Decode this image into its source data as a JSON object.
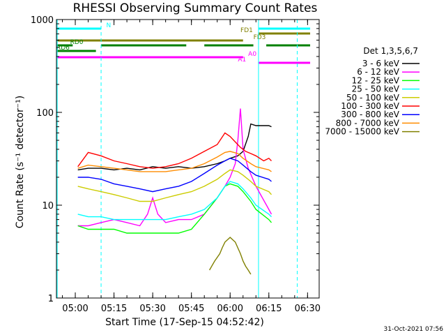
{
  "chart_data": {
    "type": "line",
    "title": "RHESSI Observing Summary Count Rates",
    "xlabel": "Start Time (17-Sep-15 04:52:42)",
    "ylabel": "Count Rate (s⁻¹ detector⁻¹)",
    "yscale": "log",
    "xlim": [
      "04:52:42",
      "06:34:30"
    ],
    "ylim": [
      1,
      1000
    ],
    "x_ticks": [
      "05:00",
      "05:15",
      "05:30",
      "05:45",
      "06:00",
      "06:15",
      "06:30"
    ],
    "y_ticks": [
      "1",
      "10",
      "100",
      "1000"
    ],
    "legend_title": "Det 1,3,5,6,7",
    "legend_position": "right",
    "timestamp": "31-Oct-2021 07:56",
    "x_unit": "HH:MM on 17-Sep-15",
    "series": [
      {
        "name": "3 - 6 keV",
        "color": "#000000",
        "x": [
          "05:01",
          "05:05",
          "05:10",
          "05:15",
          "05:20",
          "05:25",
          "05:30",
          "05:35",
          "05:40",
          "05:45",
          "05:50",
          "05:55",
          "05:58",
          "06:00",
          "06:03",
          "06:05",
          "06:07",
          "06:08",
          "06:10",
          "06:15",
          "06:16"
        ],
        "y": [
          24,
          25,
          25,
          24,
          25,
          24,
          26,
          25,
          26,
          25,
          26,
          28,
          30,
          32,
          34,
          38,
          55,
          75,
          72,
          72,
          70
        ]
      },
      {
        "name": "6 - 12 keV",
        "color": "#ff00ff",
        "x": [
          "05:01",
          "05:05",
          "05:10",
          "05:15",
          "05:20",
          "05:25",
          "05:28",
          "05:30",
          "05:32",
          "05:35",
          "05:40",
          "05:45",
          "05:50",
          "05:55",
          "05:58",
          "06:00",
          "06:02",
          "06:03",
          "06:04",
          "06:05",
          "06:07",
          "06:10",
          "06:15",
          "06:16"
        ],
        "y": [
          6,
          6,
          6.5,
          7,
          6.5,
          6,
          8,
          12,
          8,
          6.5,
          7,
          7,
          8,
          12,
          16,
          20,
          28,
          50,
          110,
          40,
          25,
          16,
          9,
          8
        ]
      },
      {
        "name": "12 - 25 keV",
        "color": "#00ff00",
        "x": [
          "05:01",
          "05:05",
          "05:10",
          "05:15",
          "05:20",
          "05:25",
          "05:30",
          "05:35",
          "05:40",
          "05:45",
          "05:50",
          "05:55",
          "05:58",
          "06:00",
          "06:03",
          "06:05",
          "06:08",
          "06:10",
          "06:15",
          "06:16"
        ],
        "y": [
          6,
          5.5,
          5.5,
          5.5,
          5,
          5,
          5,
          5,
          5,
          5.5,
          8,
          12,
          16,
          17,
          16,
          14,
          11,
          9,
          7,
          6.5
        ]
      },
      {
        "name": "25 - 50 keV",
        "color": "#00ffff",
        "x": [
          "05:01",
          "05:05",
          "05:10",
          "05:15",
          "05:20",
          "05:25",
          "05:30",
          "05:35",
          "05:40",
          "05:45",
          "05:50",
          "05:55",
          "05:58",
          "06:00",
          "06:03",
          "06:05",
          "06:08",
          "06:10",
          "06:15",
          "06:16"
        ],
        "y": [
          8,
          7.5,
          7.5,
          7,
          7,
          7,
          7,
          7,
          7.5,
          8,
          9,
          12,
          16,
          18,
          17,
          15,
          12,
          10,
          8,
          7.5
        ]
      },
      {
        "name": "50 - 100 keV",
        "color": "#cccc00",
        "x": [
          "05:01",
          "05:05",
          "05:10",
          "05:15",
          "05:20",
          "05:25",
          "05:30",
          "05:35",
          "05:40",
          "05:45",
          "05:50",
          "05:55",
          "05:58",
          "06:00",
          "06:03",
          "06:05",
          "06:08",
          "06:10",
          "06:15",
          "06:16"
        ],
        "y": [
          16,
          15,
          14,
          13,
          12,
          11,
          11,
          12,
          13,
          14,
          16,
          19,
          22,
          24,
          23,
          21,
          18,
          16,
          14,
          13
        ]
      },
      {
        "name": "100 - 300 keV",
        "color": "#ff0000",
        "x": [
          "05:01",
          "05:05",
          "05:10",
          "05:15",
          "05:20",
          "05:25",
          "05:30",
          "05:35",
          "05:40",
          "05:45",
          "05:50",
          "05:55",
          "05:58",
          "06:00",
          "06:02",
          "06:04",
          "06:06",
          "06:08",
          "06:10",
          "06:13",
          "06:15",
          "06:16"
        ],
        "y": [
          26,
          37,
          34,
          30,
          28,
          26,
          25,
          26,
          28,
          32,
          38,
          45,
          60,
          55,
          48,
          42,
          38,
          36,
          34,
          30,
          32,
          30
        ]
      },
      {
        "name": "300 - 800 keV",
        "color": "#0000ff",
        "x": [
          "05:01",
          "05:05",
          "05:10",
          "05:15",
          "05:20",
          "05:25",
          "05:30",
          "05:35",
          "05:40",
          "05:45",
          "05:50",
          "05:55",
          "05:58",
          "06:00",
          "06:03",
          "06:05",
          "06:08",
          "06:10",
          "06:15",
          "06:16"
        ],
        "y": [
          20,
          20,
          19,
          17,
          16,
          15,
          14,
          15,
          16,
          18,
          22,
          27,
          30,
          32,
          30,
          27,
          23,
          21,
          19,
          18
        ]
      },
      {
        "name": "800 - 7000 keV",
        "color": "#ff8c00",
        "x": [
          "05:01",
          "05:05",
          "05:10",
          "05:15",
          "05:20",
          "05:25",
          "05:30",
          "05:35",
          "05:40",
          "05:45",
          "05:50",
          "05:55",
          "05:58",
          "06:00",
          "06:03",
          "06:05",
          "06:08",
          "06:10",
          "06:15",
          "06:16"
        ],
        "y": [
          25,
          27,
          26,
          25,
          24,
          23,
          23,
          23,
          24,
          25,
          28,
          33,
          37,
          38,
          36,
          32,
          28,
          26,
          24,
          23
        ]
      },
      {
        "name": "7000 - 15000 keV",
        "color": "#808000",
        "x": [
          "05:52",
          "05:54",
          "05:56",
          "05:57",
          "05:58",
          "06:00",
          "06:02",
          "06:04",
          "06:05",
          "06:06",
          "06:07",
          "06:08"
        ],
        "y": [
          2,
          2.5,
          3,
          3.5,
          4,
          4.5,
          4,
          3,
          2.5,
          2.2,
          2,
          1.8
        ]
      }
    ],
    "annotations": [
      {
        "label": "N",
        "color": "#00ffff",
        "segments": [
          [
            "04:53",
            "05:10"
          ],
          [
            "06:11",
            "06:31"
          ]
        ]
      },
      {
        "label": "FD1",
        "color": "#808000",
        "segments": [
          [
            "06:11",
            "06:31"
          ]
        ]
      },
      {
        "label": "FD3",
        "color": "#808000",
        "segments": [
          [
            "04:53",
            "06:05"
          ]
        ]
      },
      {
        "label": "RD0",
        "color": "#008000",
        "segments": [
          [
            "04:53",
            "04:59"
          ],
          [
            "05:10",
            "05:43"
          ],
          [
            "05:50",
            "06:09"
          ],
          [
            "06:14",
            "06:31"
          ]
        ]
      },
      {
        "label": "RD6",
        "color": "#008000",
        "segments": [
          [
            "04:53",
            "05:08"
          ]
        ]
      },
      {
        "label": "A0",
        "color": "#ff00ff",
        "segments": [
          [
            "04:53",
            "06:05"
          ]
        ]
      },
      {
        "label": "A1",
        "color": "#ff00ff",
        "segments": [
          [
            "06:11",
            "06:31"
          ]
        ]
      }
    ],
    "vertical_markers": [
      {
        "color": "#00ffff",
        "style": "solid",
        "x": [
          "04:53",
          "06:11"
        ]
      },
      {
        "color": "#00ffff",
        "style": "dashed",
        "x": [
          "05:10",
          "06:26"
        ]
      }
    ]
  }
}
